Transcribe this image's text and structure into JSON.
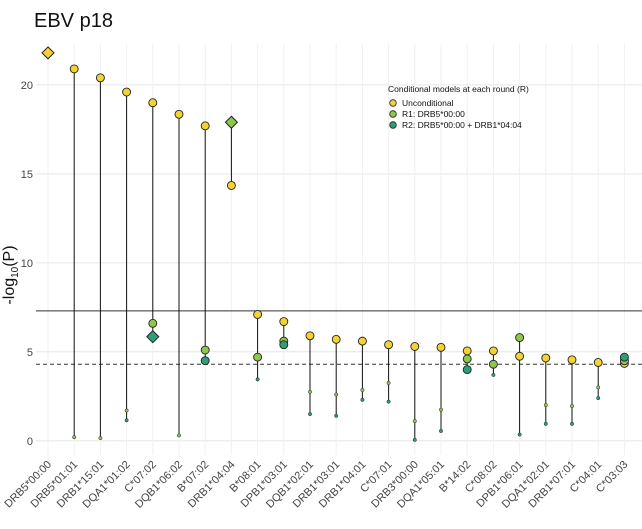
{
  "title": "EBV p18",
  "chart_data": {
    "type": "scatter",
    "title": "EBV p18",
    "ylabel_prefix": "-log",
    "ylabel_sub": "10",
    "ylabel_suffix": "(P)",
    "xlabel": "",
    "ylim": [
      -0.8,
      22.3
    ],
    "yticks": [
      0,
      5,
      10,
      15,
      20
    ],
    "grid": true,
    "hlines": [
      {
        "y": 7.3,
        "style": "solid"
      },
      {
        "y": 4.3,
        "style": "dashed"
      }
    ],
    "legend": {
      "title": "Conditional models at each round (R)",
      "position": "top-right",
      "entries": [
        {
          "label": "Unconditional",
          "color": "#f3d232"
        },
        {
          "label": "R1: DRB5*00:00",
          "color": "#8cc84b"
        },
        {
          "label": "R2: DRB5*00:00 + DRB1*04:04",
          "color": "#2f9e77"
        }
      ]
    },
    "colors": {
      "unconditional": "#f3d232",
      "r1": "#8cc84b",
      "r2": "#2f9e77"
    },
    "categories": [
      "DRB5*00:00",
      "DRB5*01:01",
      "DRB1*15:01",
      "DQA1*01:02",
      "C*07:02",
      "DQB1*06:02",
      "B*07:02",
      "DRB1*04:04",
      "B*08:01",
      "DPB1*03:01",
      "DQB1*02:01",
      "DRB1*03:01",
      "DRB1*04:01",
      "C*07:01",
      "DRB3*00:00",
      "DQA1*05:01",
      "B*14:02",
      "C*08:02",
      "DPB1*06:01",
      "DQA1*02:01",
      "DRB1*07:01",
      "C*04:01",
      "C*03:03"
    ],
    "series": [
      {
        "name": "Unconditional",
        "values": [
          21.8,
          20.9,
          20.4,
          19.6,
          19.0,
          18.35,
          17.7,
          14.35,
          7.1,
          6.7,
          5.9,
          5.7,
          5.6,
          5.4,
          5.3,
          5.25,
          5.05,
          5.05,
          4.75,
          4.65,
          4.55,
          4.4,
          4.35
        ]
      },
      {
        "name": "R1: DRB5*00:00",
        "values": [
          null,
          0.2,
          0.15,
          1.7,
          6.6,
          0.3,
          5.1,
          17.9,
          4.7,
          5.6,
          2.75,
          2.6,
          2.85,
          3.25,
          1.1,
          1.75,
          4.6,
          4.3,
          5.8,
          2.0,
          1.95,
          3.0,
          4.5
        ]
      },
      {
        "name": "R2: DRB5*00:00 + DRB1*04:04",
        "values": [
          null,
          null,
          null,
          1.15,
          5.85,
          null,
          4.5,
          null,
          3.45,
          5.4,
          1.5,
          1.4,
          2.3,
          2.2,
          0.05,
          0.55,
          4.0,
          3.7,
          0.35,
          0.95,
          0.95,
          2.4,
          4.7
        ]
      }
    ],
    "diamonds": [
      {
        "category": "DRB5*00:00",
        "series": "Unconditional"
      },
      {
        "category": "DRB1*04:04",
        "series": "R1: DRB5*00:00"
      },
      {
        "category": "C*07:02",
        "series": "R2: DRB5*00:00 + DRB1*04:04"
      }
    ]
  }
}
